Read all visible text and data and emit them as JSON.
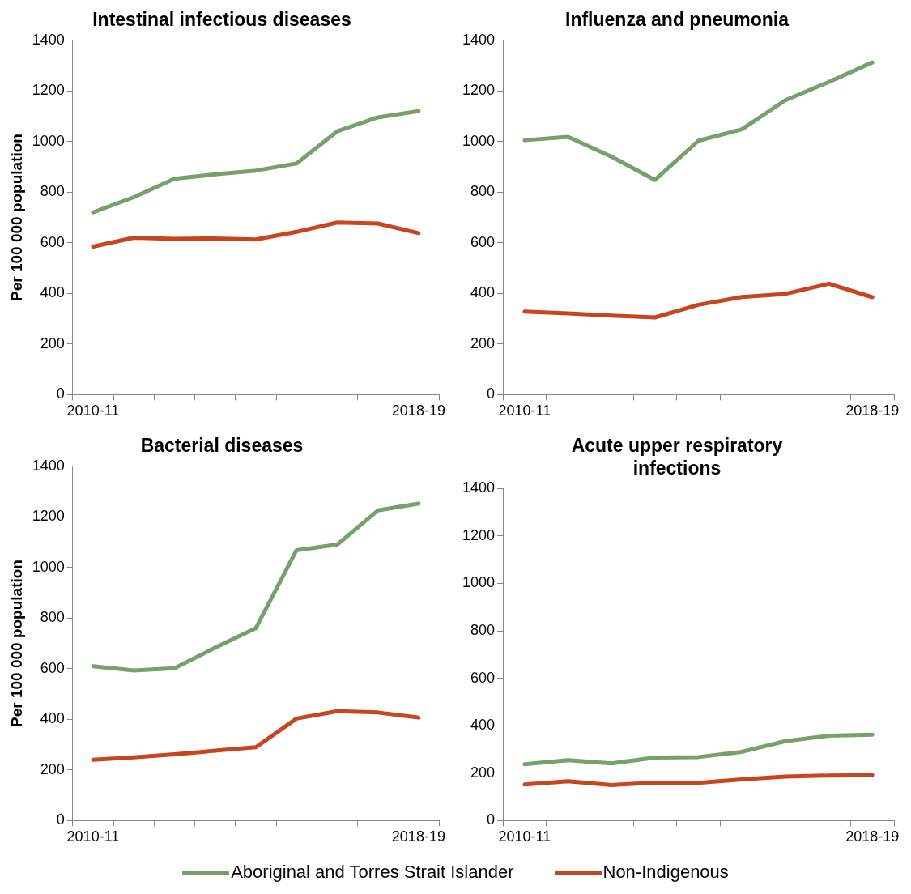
{
  "chart_data": [
    {
      "type": "line",
      "title": "Intestinal infectious diseases",
      "ylabel": "Per 100 000 population",
      "categories": [
        "2010-11",
        null,
        null,
        null,
        null,
        null,
        null,
        null,
        "2018-19"
      ],
      "ylim": [
        0,
        1400
      ],
      "yticks": [
        0,
        200,
        400,
        600,
        800,
        1000,
        1200,
        1400
      ],
      "grid": false,
      "legend": "bottom",
      "marker": "none",
      "line_style": "solid",
      "series": [
        {
          "name": "Aboriginal and Torres Strait Islander",
          "color": "#77a06b",
          "values": [
            720,
            780,
            853,
            870,
            885,
            913,
            1040,
            1095,
            1120
          ]
        },
        {
          "name": "Non-Indigenous",
          "color": "#c8461f",
          "values": [
            585,
            620,
            615,
            617,
            613,
            643,
            680,
            676,
            638
          ]
        }
      ]
    },
    {
      "type": "line",
      "title": "Influenza and pneumonia",
      "categories": [
        "2010-11",
        null,
        null,
        null,
        null,
        null,
        null,
        null,
        "2018-19"
      ],
      "ylim": [
        0,
        1400
      ],
      "yticks": [
        0,
        200,
        400,
        600,
        800,
        1000,
        1200,
        1400
      ],
      "grid": false,
      "marker": "none",
      "line_style": "solid",
      "series": [
        {
          "color": "#77a06b",
          "values": [
            1005,
            1018,
            940,
            848,
            1003,
            1048,
            1163,
            1235,
            1312
          ]
        },
        {
          "color": "#c8461f",
          "values": [
            328,
            321,
            312,
            305,
            355,
            386,
            398,
            438,
            385
          ]
        }
      ]
    },
    {
      "type": "line",
      "title": "Bacterial diseases",
      "ylabel": "Per 100 000 population",
      "categories": [
        "2010-11",
        null,
        null,
        null,
        null,
        null,
        null,
        null,
        "2018-19"
      ],
      "ylim": [
        0,
        1400
      ],
      "yticks": [
        0,
        200,
        400,
        600,
        800,
        1000,
        1200,
        1400
      ],
      "grid": false,
      "marker": "none",
      "line_style": "solid",
      "series": [
        {
          "color": "#77a06b",
          "values": [
            610,
            593,
            602,
            683,
            760,
            1068,
            1090,
            1225,
            1252
          ]
        },
        {
          "color": "#c8461f",
          "values": [
            240,
            250,
            262,
            276,
            290,
            403,
            432,
            427,
            407
          ]
        }
      ]
    },
    {
      "type": "line",
      "title": "Acute upper respiratory infections",
      "categories": [
        "2010-11",
        null,
        null,
        null,
        null,
        null,
        null,
        null,
        "2018-19"
      ],
      "ylim": [
        0,
        1400
      ],
      "yticks": [
        0,
        200,
        400,
        600,
        800,
        1000,
        1200,
        1400
      ],
      "grid": false,
      "marker": "none",
      "line_style": "solid",
      "series": [
        {
          "color": "#77a06b",
          "values": [
            238,
            255,
            241,
            266,
            268,
            290,
            335,
            358,
            362
          ]
        },
        {
          "color": "#c8461f",
          "values": [
            152,
            166,
            150,
            160,
            159,
            174,
            186,
            190,
            192
          ]
        }
      ]
    }
  ]
}
